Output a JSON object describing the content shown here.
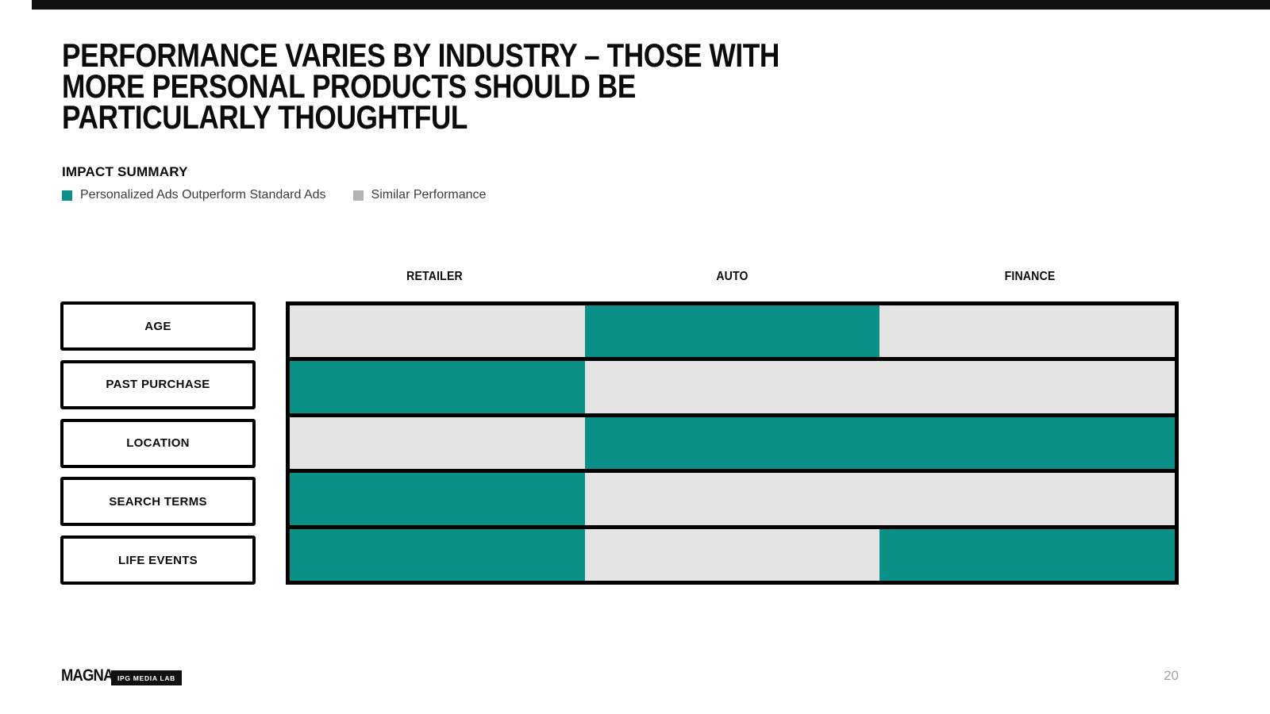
{
  "title": {
    "text": "PERFORMANCE VARIES BY INDUSTRY – THOSE WITH\nMORE PERSONAL PRODUCTS SHOULD BE\nPARTICULARLY THOUGHTFUL"
  },
  "impact_summary": {
    "label": "IMPACT SUMMARY"
  },
  "legend": {
    "items": [
      {
        "label": "Personalized Ads Outperform Standard Ads",
        "swatch": "#0b9087"
      },
      {
        "label": "Similar Performance",
        "swatch": "#b3b3b3"
      }
    ]
  },
  "colors": {
    "outperform": "#0b9087",
    "similar": "#e4e4e4"
  },
  "chart_data": {
    "type": "heatmap",
    "title": "IMPACT SUMMARY",
    "columns": [
      "RETAILER",
      "AUTO",
      "FINANCE"
    ],
    "rows": [
      "AGE",
      "PAST PURCHASE",
      "LOCATION",
      "SEARCH TERMS",
      "LIFE EVENTS"
    ],
    "values": [
      [
        "similar",
        "outperform",
        "similar"
      ],
      [
        "outperform",
        "similar",
        "similar"
      ],
      [
        "similar",
        "outperform",
        "outperform"
      ],
      [
        "outperform",
        "similar",
        "similar"
      ],
      [
        "outperform",
        "similar",
        "outperform"
      ]
    ],
    "legend": [
      {
        "label": "Personalized Ads Outperform Standard Ads",
        "value": "outperform",
        "color": "#0b9087"
      },
      {
        "label": "Similar Performance",
        "value": "similar",
        "color": "#e4e4e4"
      }
    ],
    "legend_position": "top-left",
    "grid": true
  },
  "footer": {
    "logo_text": "MAGNA",
    "badge_text": "IPG MEDIA LAB",
    "page_number": "20"
  }
}
